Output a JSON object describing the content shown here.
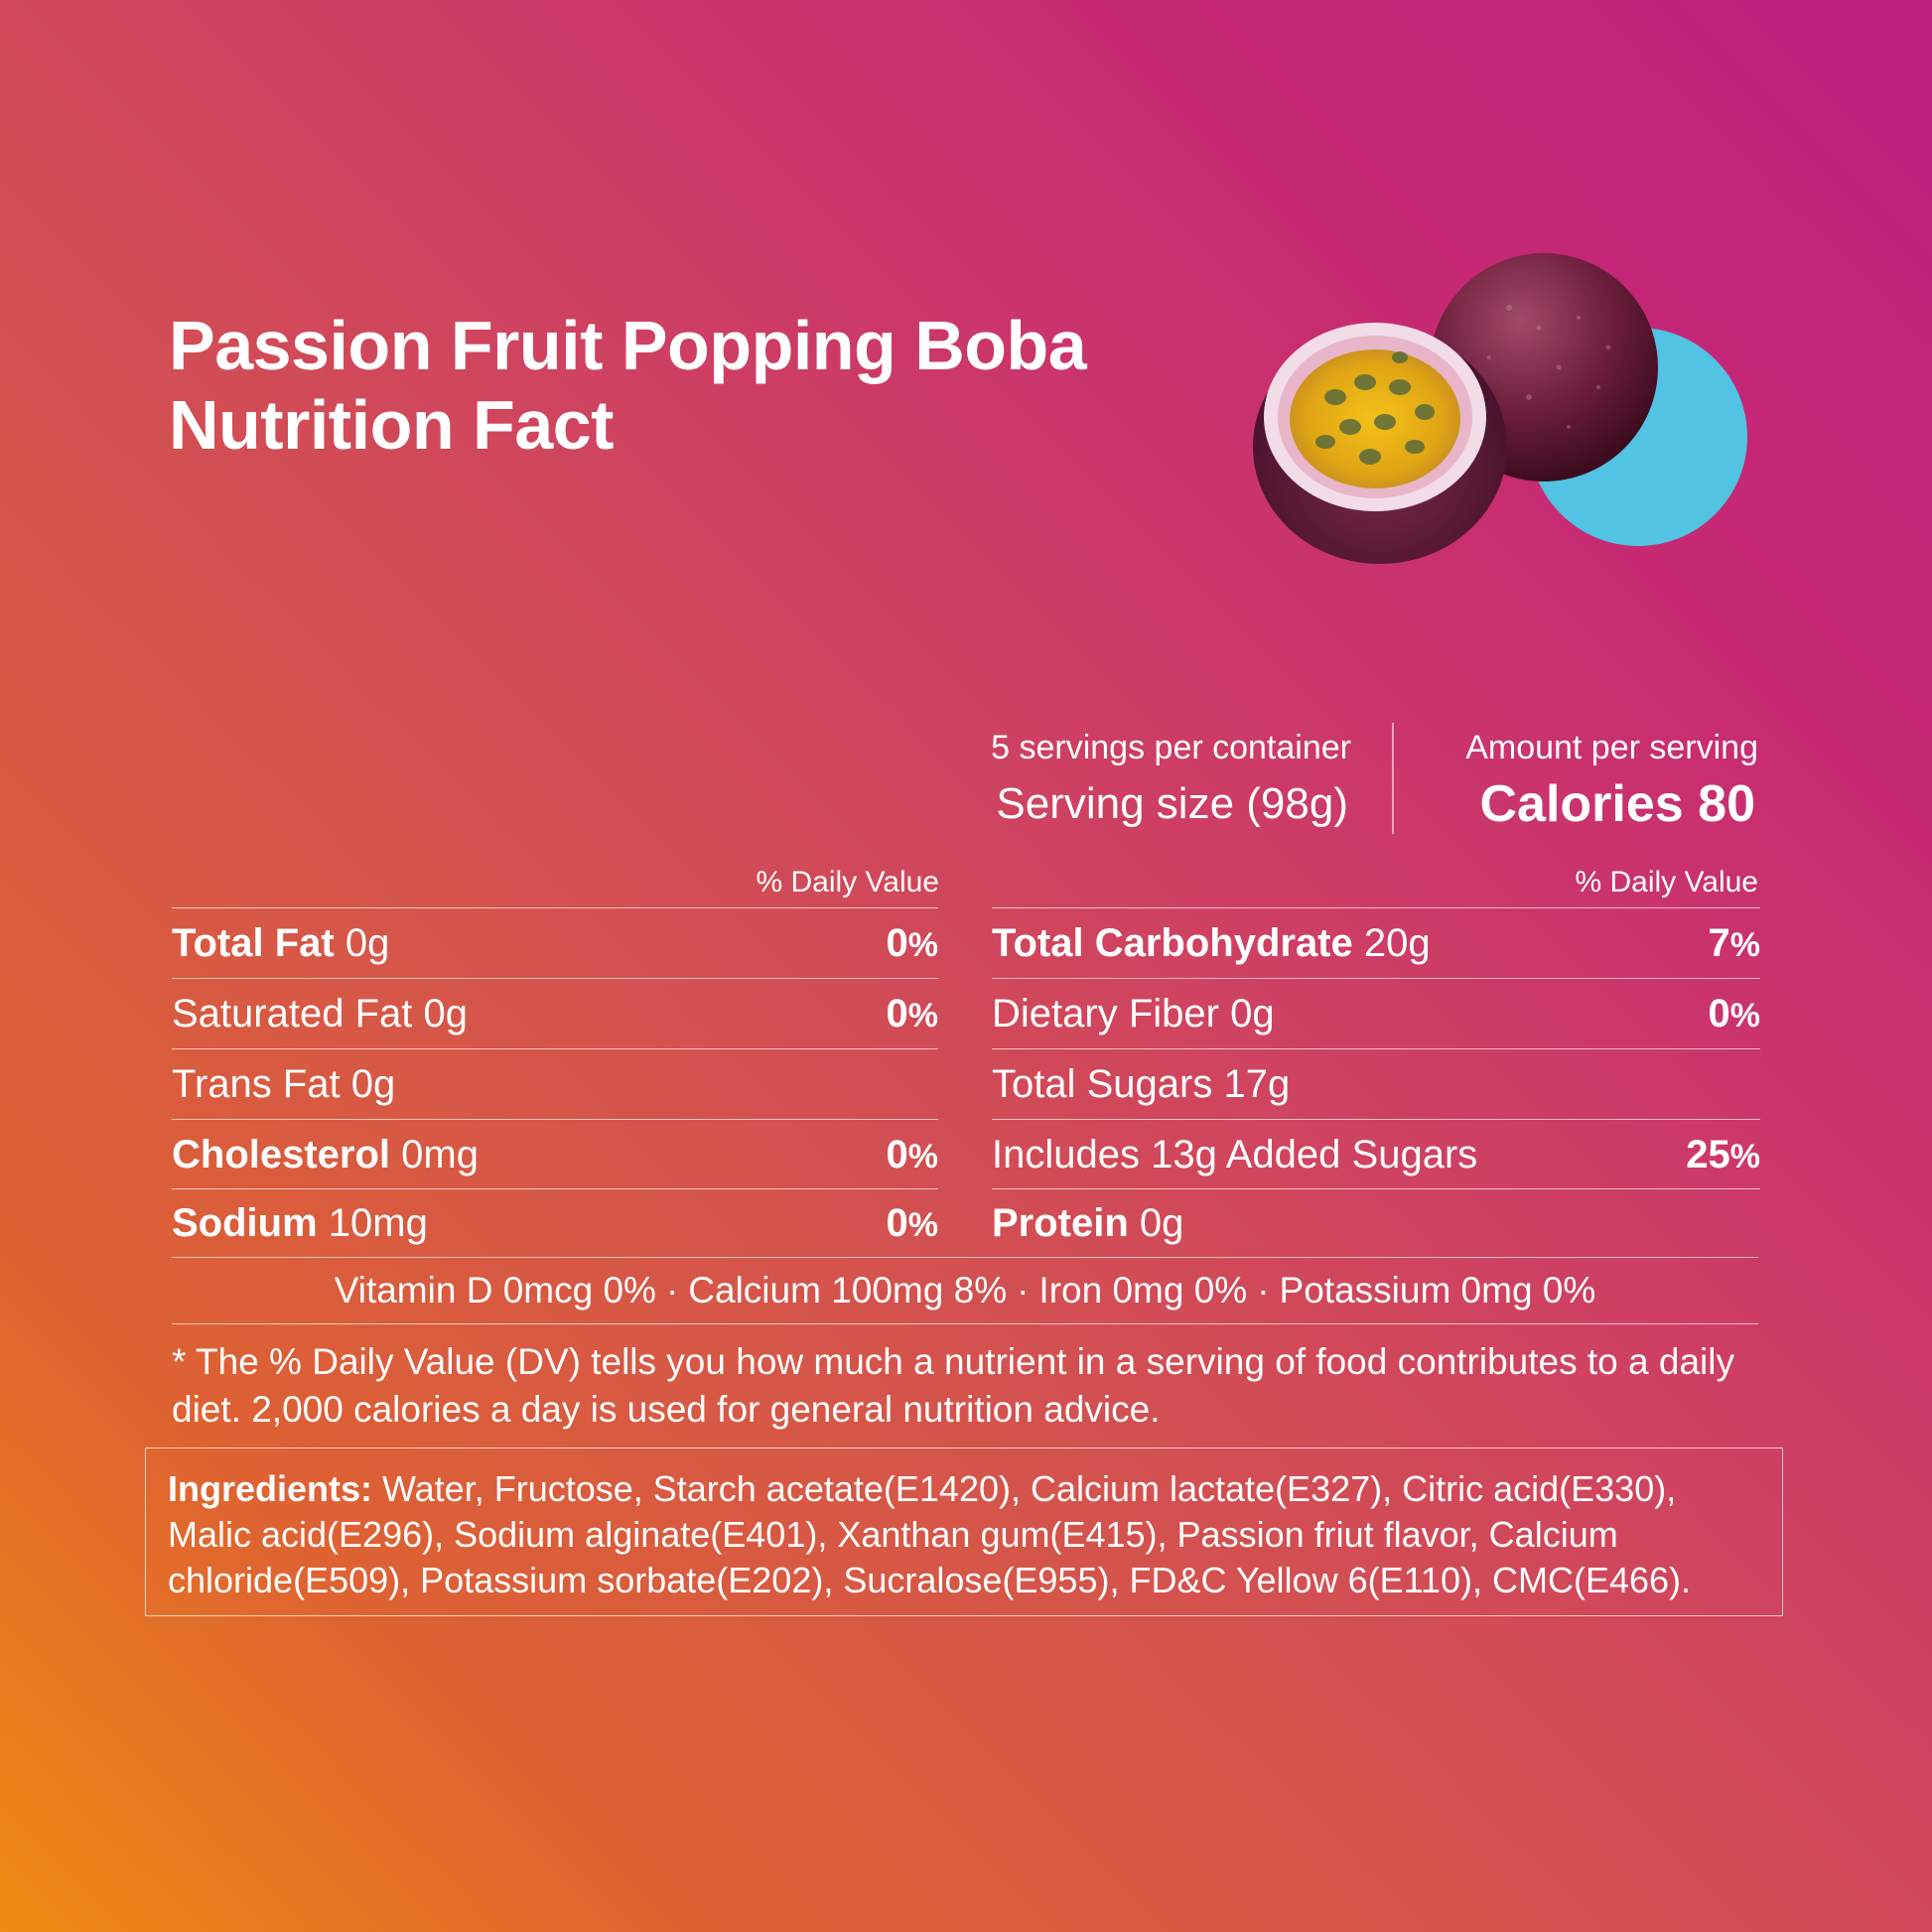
{
  "title": {
    "line1": "Passion Fruit Popping Boba",
    "line2": "Nutrition Fact"
  },
  "colors": {
    "gradient_top": "#bd1f7f",
    "gradient_bottom": "#ef8b12",
    "accent_circle": "#52c3e3"
  },
  "serving": {
    "count": "5 servings per container",
    "size": "Serving size (98g)",
    "amount_label": "Amount per serving",
    "calories": "Calories 80"
  },
  "daily_value_header": "% Daily Value",
  "left_rows": [
    {
      "name": "Total Fat",
      "amount": "0g",
      "bold": true,
      "pct": "0",
      "pct_sign": "%"
    },
    {
      "name": "Saturated Fat",
      "amount": "0g",
      "bold": false,
      "pct": "0",
      "pct_sign": "%"
    },
    {
      "name": "Trans Fat",
      "amount": "0g",
      "bold": false,
      "pct": "",
      "pct_sign": ""
    },
    {
      "name": "Cholesterol",
      "amount": "0mg",
      "bold": true,
      "pct": "0",
      "pct_sign": "%"
    },
    {
      "name": "Sodium",
      "amount": "10mg",
      "bold": true,
      "pct": "0",
      "pct_sign": "%"
    }
  ],
  "right_rows": [
    {
      "name": "Total Carbohydrate",
      "amount": "20g",
      "bold": true,
      "pct": "7",
      "pct_sign": "%"
    },
    {
      "name": "Dietary Fiber",
      "amount": "0g",
      "bold": false,
      "pct": "0",
      "pct_sign": "%"
    },
    {
      "name": "Total Sugars",
      "amount": "17g",
      "bold": false,
      "pct": "",
      "pct_sign": ""
    },
    {
      "name": "Includes 13g Added Sugars",
      "amount": "",
      "bold": false,
      "pct": "25",
      "pct_sign": "%"
    },
    {
      "name": "Protein",
      "amount": "0g",
      "bold": true,
      "pct": "",
      "pct_sign": ""
    }
  ],
  "vitamins": [
    "Vitamin D 0mcg 0%",
    "Calcium 100mg 8%",
    "Iron 0mg 0%",
    "Potassium 0mg 0%"
  ],
  "vitamin_separator": "·",
  "footnote": "* The % Daily Value (DV) tells you how much a nutrient in a serving of food contributes to a daily diet. 2,000 calories a day is used for general nutrition advice.",
  "ingredients": {
    "label": "Ingredients:",
    "text": " Water, Fructose, Starch acetate(E1420), Calcium lactate(E327), Citric acid(E330), Malic acid(E296), Sodium alginate(E401), Xanthan gum(E415), Passion friut flavor, Calcium chloride(E509), Potassium sorbate(E202), Sucralose(E955), FD&C Yellow 6(E110), CMC(E466)."
  }
}
